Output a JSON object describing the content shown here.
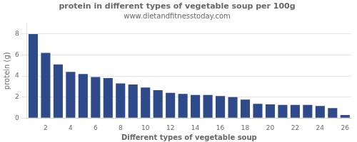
{
  "chart_data": {
    "type": "bar",
    "title": "protein in different types of vegetable soup per 100g",
    "subtitle": "www.dietandfitnesstoday.com",
    "x_label": "Different types of vegetable soup",
    "y_label": "protein (g)",
    "categories": [
      null,
      "2",
      null,
      "4",
      null,
      "6",
      null,
      "8",
      null,
      "10",
      null,
      "12",
      null,
      "14",
      null,
      "16",
      null,
      "18",
      null,
      "20",
      null,
      "22",
      null,
      "24",
      null,
      "26"
    ],
    "values": [
      8.0,
      6.2,
      5.1,
      4.4,
      4.2,
      3.9,
      3.8,
      3.3,
      3.2,
      2.9,
      2.65,
      2.4,
      2.3,
      2.2,
      2.2,
      2.1,
      2.0,
      1.75,
      1.35,
      1.3,
      1.25,
      1.25,
      1.25,
      1.15,
      0.95,
      0.28
    ],
    "color": "#2e4a8a",
    "ylim": [
      0,
      9
    ],
    "yticks": [
      0,
      2,
      4,
      6,
      8
    ],
    "grid": true
  }
}
